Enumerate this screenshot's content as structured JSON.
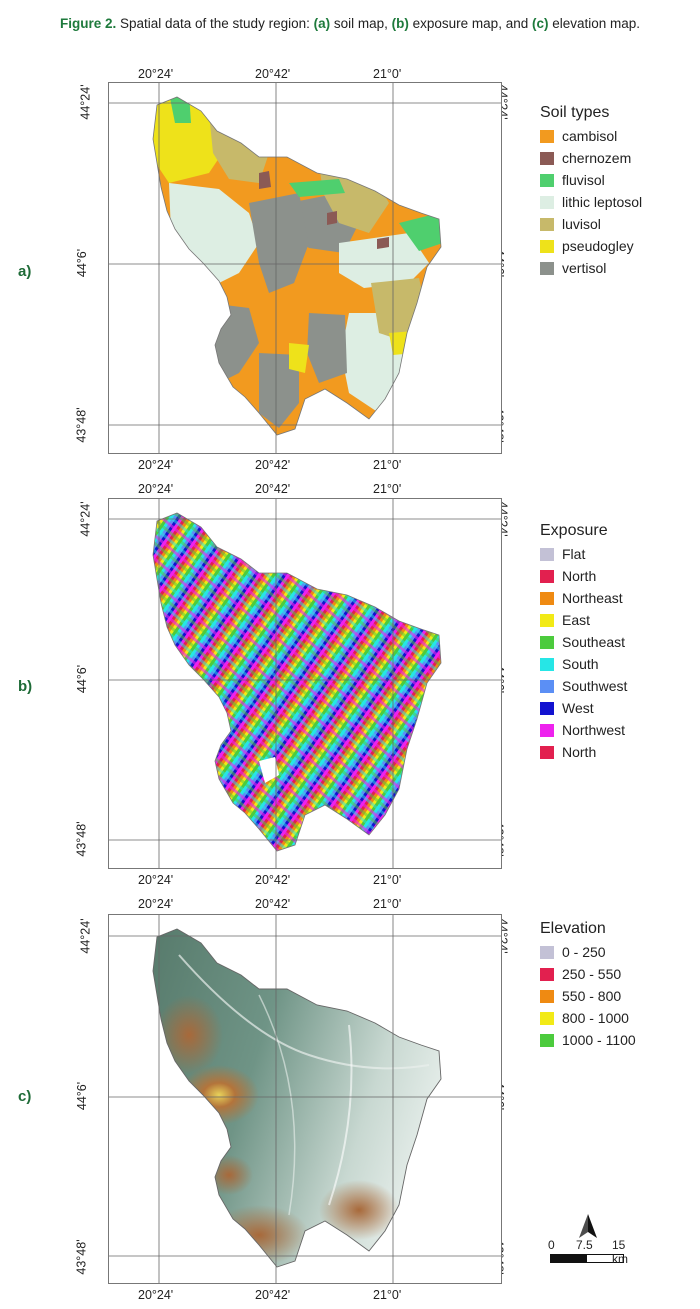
{
  "caption": {
    "prefix": "Figure 2.",
    "text1": " Spatial data of the study region: ",
    "a": "(a)",
    "text2": " soil map, ",
    "b": "(b)",
    "text3": " exposure map, and ",
    "c": "(c)",
    "text4": " elevation map."
  },
  "axis": {
    "lon_ticks": [
      "20°24'",
      "20°42'",
      "21°0'"
    ],
    "lat_ticks": [
      "44°24'",
      "44°6'",
      "43°48'"
    ]
  },
  "panels": [
    {
      "label": "a)",
      "legend_title": "Soil types",
      "legend": [
        {
          "name": "cambisol",
          "color": "#f29a1f"
        },
        {
          "name": "chernozem",
          "color": "#8b5a55"
        },
        {
          "name": "fluvisol",
          "color": "#4fcf6e"
        },
        {
          "name": "lithic leptosol",
          "color": "#ddeee3"
        },
        {
          "name": "luvisol",
          "color": "#c7b96a"
        },
        {
          "name": "pseudogley",
          "color": "#eee21a"
        },
        {
          "name": "vertisol",
          "color": "#8c918c"
        }
      ]
    },
    {
      "label": "b)",
      "legend_title": "Exposure",
      "legend": [
        {
          "name": "Flat",
          "color": "#c3c1d6"
        },
        {
          "name": "North",
          "color": "#e2204f"
        },
        {
          "name": "Northeast",
          "color": "#ef8a12"
        },
        {
          "name": "East",
          "color": "#f2ea16"
        },
        {
          "name": "Southeast",
          "color": "#4ccb3d"
        },
        {
          "name": "South",
          "color": "#26e6e6"
        },
        {
          "name": "Southwest",
          "color": "#5b8ff5"
        },
        {
          "name": "West",
          "color": "#1212d0"
        },
        {
          "name": "Northwest",
          "color": "#ee22ee"
        },
        {
          "name": "North",
          "color": "#e2204f"
        }
      ]
    },
    {
      "label": "c)",
      "legend_title": "Elevation",
      "legend": [
        {
          "name": "0 - 250",
          "color": "#c3c1d6"
        },
        {
          "name": "250 - 550",
          "color": "#e2204f"
        },
        {
          "name": "550 - 800",
          "color": "#ef8a12"
        },
        {
          "name": "800 - 1000",
          "color": "#f2ea16"
        },
        {
          "name": "1000 - 1100",
          "color": "#4ccb3d"
        }
      ]
    }
  ],
  "scale": {
    "t0": "0",
    "t1": "7.5",
    "t2": "15 km"
  }
}
